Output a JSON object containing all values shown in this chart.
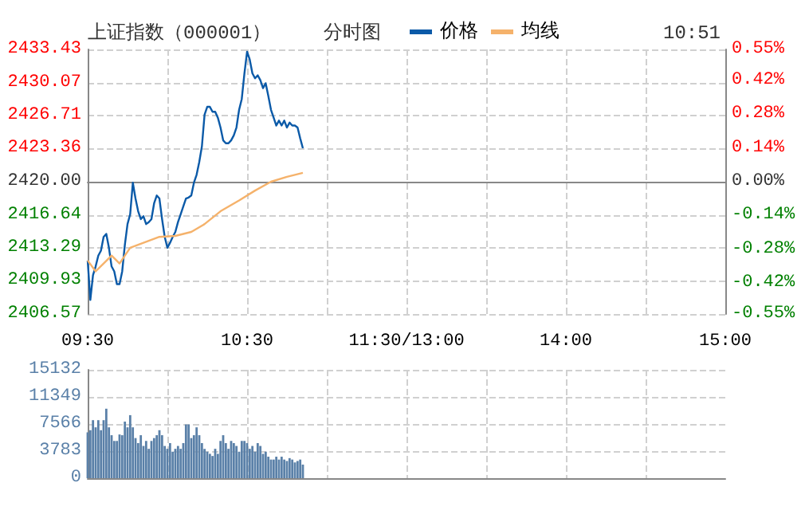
{
  "chart_data": [
    {
      "type": "line",
      "title": "上证指数（000001）",
      "subtitle": "分时图",
      "annotations": [
        "10:51"
      ],
      "legend": "top",
      "grid": true,
      "marker": "none",
      "categories": [
        "09:30",
        null,
        null,
        null,
        null,
        null,
        null,
        null,
        null,
        null,
        null,
        null,
        null,
        null,
        null,
        null,
        null,
        null,
        null,
        null,
        null,
        null,
        null,
        null,
        null,
        null,
        null,
        null,
        null,
        null,
        null,
        null,
        null,
        null,
        null,
        null,
        null,
        null,
        null,
        null,
        null,
        null,
        null,
        null,
        null,
        null,
        null,
        null,
        null,
        null,
        null,
        null,
        null,
        null,
        null,
        null,
        null,
        null,
        null,
        null,
        "10:30",
        null,
        null,
        null,
        null,
        null,
        null,
        null,
        null,
        null,
        null,
        null,
        null,
        null,
        null,
        null,
        null,
        null,
        null,
        null,
        null,
        null,
        null,
        null,
        null,
        null,
        null,
        null,
        null,
        null,
        null,
        null,
        null,
        null,
        null,
        null,
        null,
        null,
        null,
        null,
        null,
        null,
        null,
        null,
        null,
        null,
        null,
        null,
        null,
        null,
        null,
        null,
        null,
        null,
        null,
        null,
        null,
        null,
        null,
        null,
        "11:30/13:00",
        null,
        null,
        null,
        null,
        null,
        null,
        null,
        null,
        null,
        null,
        null,
        null,
        null,
        null,
        null,
        null,
        null,
        null,
        null,
        null,
        null,
        null,
        null,
        null,
        null,
        null,
        null,
        null,
        null,
        null,
        null,
        null,
        null,
        null,
        null,
        null,
        null,
        null,
        null,
        null,
        null,
        null,
        null,
        null,
        null,
        null,
        null,
        null,
        null,
        null,
        null,
        null,
        null,
        null,
        null,
        null,
        null,
        null,
        null,
        "14:00",
        null,
        null,
        null,
        null,
        null,
        null,
        null,
        null,
        null,
        null,
        null,
        null,
        null,
        null,
        null,
        null,
        null,
        null,
        null,
        null,
        null,
        null,
        null,
        null,
        null,
        null,
        null,
        null,
        null,
        null,
        null,
        null,
        null,
        null,
        null,
        null,
        null,
        null,
        null,
        null,
        null,
        null,
        null,
        null,
        null,
        null,
        null,
        null,
        null,
        null,
        null,
        null,
        null,
        null,
        null,
        null,
        null,
        null,
        null,
        "15:00"
      ],
      "ylim": [
        2406.57,
        2433.43
      ],
      "yticks": [
        2406.57,
        2409.93,
        2413.29,
        2416.64,
        {
          "value": 2420,
          "label": "2420.00"
        },
        2423.36,
        2426.71,
        2430.07,
        2433.43
      ],
      "y2lim": [
        -0.55,
        0.55
      ],
      "y2ticks": [
        {
          "value": -0.55,
          "label": "-0.55%"
        },
        {
          "value": -0.42,
          "label": "-0.42%"
        },
        {
          "value": -0.28,
          "label": "-0.28%"
        },
        {
          "value": -0.14,
          "label": "-0.14%"
        },
        {
          "value": 0,
          "label": "0.00%"
        },
        {
          "value": 0.14,
          "label": "0.14%"
        },
        {
          "value": 0.28,
          "label": "0.28%"
        },
        {
          "value": 0.42,
          "label": "0.42%"
        },
        {
          "value": 0.55,
          "label": "0.55%"
        }
      ],
      "series": [
        {
          "name": "价格",
          "color": "#0b5aa8",
          "values": [
            2412.0,
            2408.0,
            2410.5,
            2411.4,
            2412.5,
            2413.0,
            2414.4,
            2414.7,
            2413.3,
            2411.4,
            2410.9,
            2409.6,
            2409.6,
            2410.9,
            2413.6,
            2415.7,
            2416.7,
            2419.9,
            2418.3,
            2417.0,
            2416.2,
            2416.5,
            2415.7,
            2415.9,
            2416.2,
            2417.8,
            2418.6,
            2418.3,
            2416.2,
            2414.4,
            2413.3,
            2413.8,
            2414.4,
            2414.9,
            2415.9,
            2416.7,
            2417.5,
            2418.3,
            2418.4,
            2418.6,
            2419.9,
            2420.7,
            2422.0,
            2423.6,
            2426.8,
            2427.6,
            2427.6,
            2427.1,
            2427.1,
            2426.5,
            2425.5,
            2424.2,
            2423.9,
            2423.9,
            2424.2,
            2424.7,
            2425.5,
            2427.3,
            2428.4,
            2431.0,
            2433.2,
            2432.4,
            2431.0,
            2430.5,
            2430.8,
            2430.3,
            2429.5,
            2430.0,
            2428.7,
            2427.3,
            2426.5,
            2425.7,
            2426.2,
            2425.7,
            2426.2,
            2425.5,
            2426.0,
            2425.7,
            2425.7,
            2425.5,
            2424.4,
            2423.4,
            null,
            null,
            null,
            null,
            null,
            null,
            null,
            null,
            null,
            null,
            null,
            null,
            null,
            null,
            null,
            null,
            null,
            null,
            null,
            null,
            null,
            null,
            null,
            null,
            null,
            null,
            null,
            null,
            null,
            null,
            null,
            null,
            null,
            null,
            null,
            null,
            null,
            null,
            null,
            null,
            null,
            null,
            null,
            null,
            null,
            null,
            null,
            null,
            null,
            null,
            null,
            null,
            null,
            null,
            null,
            null,
            null,
            null,
            null,
            null,
            null,
            null,
            null,
            null,
            null,
            null,
            null,
            null,
            null,
            null,
            null,
            null,
            null,
            null,
            null,
            null,
            null,
            null,
            null,
            null,
            null,
            null,
            null,
            null,
            null,
            null,
            null,
            null,
            null,
            null,
            null,
            null,
            null,
            null,
            null,
            null,
            null,
            null,
            null,
            null,
            null,
            null,
            null,
            null,
            null,
            null,
            null,
            null,
            null,
            null,
            null,
            null,
            null,
            null,
            null,
            null,
            null,
            null,
            null,
            null,
            null,
            null,
            null,
            null,
            null,
            null,
            null,
            null,
            null,
            null,
            null,
            null,
            null,
            null,
            null,
            null,
            null,
            null,
            null,
            null,
            null,
            null,
            null,
            null,
            null,
            null,
            null,
            null,
            null,
            null,
            null,
            null,
            null,
            null,
            null,
            null,
            null,
            null,
            null
          ]
        },
        {
          "name": "均线",
          "color": "#f5b26b",
          "values": [
            2412.0,
            null,
            null,
            2410.9,
            null,
            null,
            2411.7,
            null,
            null,
            2412.5,
            null,
            null,
            2411.7,
            null,
            null,
            null,
            2413.3,
            null,
            null,
            null,
            null,
            2413.8,
            null,
            null,
            null,
            null,
            null,
            2414.4,
            null,
            null,
            null,
            null,
            null,
            2414.5,
            null,
            null,
            null,
            null,
            null,
            2414.9,
            null,
            null,
            null,
            null,
            2415.7,
            null,
            null,
            null,
            null,
            null,
            2417.0,
            null,
            null,
            null,
            null,
            null,
            null,
            2418.1,
            null,
            null,
            null,
            null,
            null,
            2419.1,
            null,
            null,
            null,
            null,
            null,
            2420.0,
            null,
            null,
            null,
            null,
            null,
            2420.5,
            null,
            null,
            null,
            null,
            null,
            2420.9,
            null,
            null,
            null,
            null,
            null,
            null,
            null,
            null,
            null,
            null,
            null,
            null,
            null,
            null,
            null,
            null,
            null,
            null,
            null,
            null,
            null,
            null,
            null,
            null,
            null,
            null,
            null,
            null,
            null,
            null,
            null,
            null,
            null,
            null,
            null,
            null,
            null,
            null,
            null,
            null,
            null,
            null,
            null,
            null,
            null,
            null,
            null,
            null,
            null,
            null,
            null,
            null,
            null,
            null,
            null,
            null,
            null,
            null,
            null,
            null,
            null,
            null,
            null,
            null,
            null,
            null,
            null,
            null,
            null,
            null,
            null,
            null,
            null,
            null,
            null,
            null,
            null,
            null,
            null,
            null,
            null,
            null,
            null,
            null,
            null,
            null,
            null,
            null,
            null,
            null,
            null,
            null,
            null,
            null,
            null,
            null,
            null,
            null,
            null,
            null,
            null,
            null,
            null,
            null,
            null,
            null,
            null,
            null,
            null,
            null,
            null,
            null,
            null,
            null,
            null,
            null,
            null,
            null,
            null,
            null,
            null,
            null,
            null,
            null,
            null,
            null,
            null,
            null,
            null,
            null,
            null,
            null,
            null,
            null,
            null,
            null,
            null,
            null,
            null,
            null,
            null,
            null,
            null,
            null,
            null,
            null,
            null,
            null,
            null,
            null,
            null,
            null,
            null,
            null,
            null,
            null,
            null,
            null,
            null
          ]
        }
      ]
    },
    {
      "type": "bar",
      "grid": true,
      "tick_labels": "y",
      "color": "#5a80a8",
      "categories": [
        null,
        null,
        null,
        null,
        null,
        null,
        null,
        null,
        null,
        null,
        null,
        null,
        null,
        null,
        null,
        null,
        null,
        null,
        null,
        null,
        null,
        null,
        null,
        null,
        null,
        null,
        null,
        null,
        null,
        null,
        null,
        null,
        null,
        null,
        null,
        null,
        null,
        null,
        null,
        null,
        null,
        null,
        null,
        null,
        null,
        null,
        null,
        null,
        null,
        null,
        null,
        null,
        null,
        null,
        null,
        null,
        null,
        null,
        null,
        null,
        null,
        null,
        null,
        null,
        null,
        null,
        null,
        null,
        null,
        null,
        null,
        null,
        null,
        null,
        null,
        null,
        null,
        null,
        null,
        null,
        null,
        null,
        null,
        null,
        null,
        null,
        null,
        null,
        null,
        null,
        null,
        null,
        null,
        null,
        null,
        null,
        null,
        null,
        null,
        null,
        null,
        null,
        null,
        null,
        null,
        null,
        null,
        null,
        null,
        null,
        null,
        null,
        null,
        null,
        null,
        null,
        null,
        null,
        null,
        null,
        null,
        null,
        null,
        null,
        null,
        null,
        null,
        null,
        null,
        null,
        null,
        null,
        null,
        null,
        null,
        null,
        null,
        null,
        null,
        null,
        null,
        null,
        null,
        null,
        null,
        null,
        null,
        null,
        null,
        null,
        null,
        null,
        null,
        null,
        null,
        null,
        null,
        null,
        null,
        null,
        null,
        null,
        null,
        null,
        null,
        null,
        null,
        null,
        null,
        null,
        null,
        null,
        null,
        null,
        null,
        null,
        null,
        null,
        null,
        null,
        null,
        null,
        null,
        null,
        null,
        null,
        null,
        null,
        null,
        null,
        null,
        null,
        null,
        null,
        null,
        null,
        null,
        null,
        null,
        null,
        null,
        null,
        null,
        null,
        null,
        null,
        null,
        null,
        null,
        null,
        null,
        null,
        null,
        null,
        null,
        null,
        null,
        null,
        null,
        null,
        null,
        null,
        null,
        null,
        null,
        null,
        null,
        null,
        null,
        null,
        null,
        null,
        null,
        null,
        null,
        null,
        null,
        null,
        null,
        null,
        null
      ],
      "ylim": [
        0,
        15132
      ],
      "yticks": [
        0,
        3783,
        7566,
        11349,
        15132
      ],
      "values": [
        6400,
        6700,
        8100,
        7100,
        8100,
        6700,
        8100,
        9700,
        7100,
        6000,
        5200,
        5200,
        6100,
        6000,
        7900,
        7100,
        8800,
        7100,
        5600,
        4900,
        6000,
        4500,
        5200,
        4100,
        5200,
        5600,
        6000,
        6700,
        6000,
        4500,
        4100,
        4900,
        3700,
        4100,
        4500,
        4100,
        4900,
        7500,
        7500,
        5600,
        6000,
        7100,
        6000,
        4900,
        4100,
        3700,
        3400,
        3100,
        4100,
        3400,
        5200,
        6000,
        4900,
        4100,
        5200,
        4900,
        4500,
        3700,
        5200,
        5200,
        4900,
        4100,
        4500,
        3700,
        4900,
        4500,
        3400,
        3700,
        3000,
        2600,
        2600,
        3000,
        2600,
        3000,
        2600,
        2400,
        2800,
        2600,
        2200,
        2400,
        2600,
        1900,
        null,
        null,
        null,
        null,
        null,
        null,
        null,
        null,
        null,
        null,
        null,
        null,
        null,
        null,
        null,
        null,
        null,
        null,
        null,
        null,
        null,
        null,
        null,
        null,
        null,
        null,
        null,
        null,
        null,
        null,
        null,
        null,
        null,
        null,
        null,
        null,
        null,
        null,
        null,
        null,
        null,
        null,
        null,
        null,
        null,
        null,
        null,
        null,
        null,
        null,
        null,
        null,
        null,
        null,
        null,
        null,
        null,
        null,
        null,
        null,
        null,
        null,
        null,
        null,
        null,
        null,
        null,
        null,
        null,
        null,
        null,
        null,
        null,
        null,
        null,
        null,
        null,
        null,
        null,
        null,
        null,
        null,
        null,
        null,
        null,
        null,
        null,
        null,
        null,
        null,
        null,
        null,
        null,
        null,
        null,
        null,
        null,
        null,
        null,
        null,
        null,
        null,
        null,
        null,
        null,
        null,
        null,
        null,
        null,
        null,
        null,
        null,
        null,
        null,
        null,
        null,
        null,
        null,
        null,
        null,
        null,
        null,
        null,
        null,
        null,
        null,
        null,
        null,
        null,
        null,
        null,
        null,
        null,
        null,
        null,
        null,
        null,
        null,
        null,
        null,
        null,
        null,
        null,
        null,
        null,
        null,
        null,
        null,
        null,
        null,
        null,
        null,
        null,
        null,
        null,
        null,
        null,
        null,
        null
      ]
    }
  ]
}
